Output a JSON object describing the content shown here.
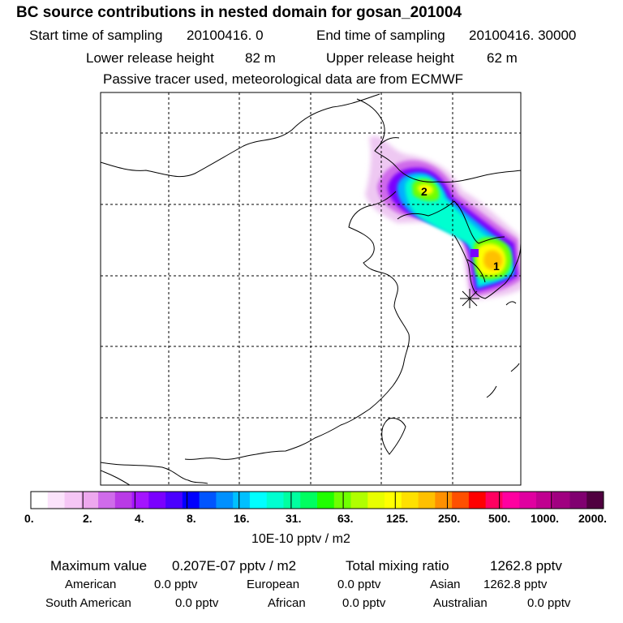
{
  "title": "BC  source contributions in nested domain for gosan_201004",
  "sampling": {
    "start_label": "Start time of sampling",
    "start_value": "20100416.    0",
    "end_label": "End time of sampling",
    "end_value": "20100416. 30000"
  },
  "release": {
    "lower_label": "Lower release height",
    "lower_value": "82 m",
    "upper_label": "Upper release height",
    "upper_value": "62 m"
  },
  "tracer_note": "Passive tracer used, meteorological data are from ECMWF",
  "map": {
    "markers": [
      {
        "label": "2"
      },
      {
        "label": "1"
      }
    ],
    "receptor_icon": "star-icon"
  },
  "legend": {
    "colors": [
      "#ffffff",
      "#fbe3fb",
      "#f5c6f5",
      "#eda8ee",
      "#cf6bea",
      "#b93ae6",
      "#a414ff",
      "#7a00ff",
      "#4a00ff",
      "#0000ff",
      "#0055ff",
      "#0090ff",
      "#00c0ff",
      "#00ffff",
      "#00ffd0",
      "#00ffa0",
      "#00ff60",
      "#20ff00",
      "#70ff00",
      "#b0ff00",
      "#e8ff00",
      "#ffff00",
      "#ffe000",
      "#ffc000",
      "#ff9000",
      "#ff5000",
      "#ff0000",
      "#ff0060",
      "#ff00a0",
      "#e000a0",
      "#c00090",
      "#a00080",
      "#800070",
      "#500040"
    ],
    "ticks": [
      "0.",
      "2.",
      "4.",
      "8.",
      "16.",
      "31.",
      "63.",
      "125.",
      "250.",
      "500.",
      "1000.",
      "2000."
    ],
    "unit": "10E-10 pptv / m2"
  },
  "summary": {
    "max_label": "Maximum value",
    "max_value": "0.207E-07 pptv / m2",
    "total_label": "Total mixing ratio",
    "total_value": "1262.8 pptv",
    "regions": [
      {
        "name": "American",
        "value": "0.0 pptv"
      },
      {
        "name": "European",
        "value": "0.0 pptv"
      },
      {
        "name": "Asian",
        "value": "1262.8 pptv"
      },
      {
        "name": "South American",
        "value": "0.0 pptv"
      },
      {
        "name": "African",
        "value": "0.0 pptv"
      },
      {
        "name": "Australian",
        "value": "0.0 pptv"
      }
    ]
  }
}
